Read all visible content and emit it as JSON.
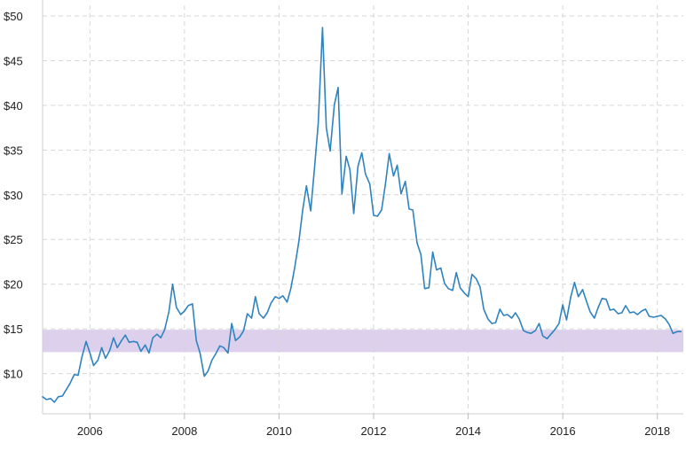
{
  "chart_data": {
    "type": "line",
    "title": "",
    "xlabel": "",
    "ylabel": "",
    "grid": true,
    "xlim": [
      2005.0,
      2018.55
    ],
    "ylim": [
      5.5,
      50
    ],
    "y_ticks": [
      10,
      15,
      20,
      25,
      30,
      35,
      40,
      45,
      50
    ],
    "y_tick_labels": [
      "$10",
      "$15",
      "$20",
      "$25",
      "$30",
      "$35",
      "$40",
      "$45",
      "$50"
    ],
    "x_ticks": [
      2006,
      2008,
      2010,
      2012,
      2014,
      2016,
      2018
    ],
    "x_tick_labels": [
      "2006",
      "2008",
      "2010",
      "2012",
      "2014",
      "2016",
      "2018"
    ],
    "band": {
      "y_low": 12.4,
      "y_high": 14.9,
      "color": "#dcd0ec"
    },
    "colors": {
      "line": "#2f83bf",
      "grid": "#d6d6d6",
      "axis": "#d0d0d0"
    },
    "series": [
      {
        "color": "#2f83bf",
        "x": [
          2005.0,
          2005.08,
          2005.17,
          2005.25,
          2005.33,
          2005.42,
          2005.5,
          2005.58,
          2005.67,
          2005.75,
          2005.83,
          2005.92,
          2006.0,
          2006.08,
          2006.17,
          2006.25,
          2006.33,
          2006.42,
          2006.5,
          2006.58,
          2006.67,
          2006.75,
          2006.83,
          2006.92,
          2007.0,
          2007.08,
          2007.17,
          2007.25,
          2007.33,
          2007.42,
          2007.5,
          2007.58,
          2007.67,
          2007.75,
          2007.83,
          2007.92,
          2008.0,
          2008.08,
          2008.17,
          2008.25,
          2008.33,
          2008.42,
          2008.5,
          2008.58,
          2008.67,
          2008.75,
          2008.83,
          2008.92,
          2009.0,
          2009.08,
          2009.17,
          2009.25,
          2009.33,
          2009.42,
          2009.5,
          2009.58,
          2009.67,
          2009.75,
          2009.83,
          2009.92,
          2010.0,
          2010.08,
          2010.17,
          2010.25,
          2010.33,
          2010.42,
          2010.5,
          2010.58,
          2010.67,
          2010.75,
          2010.83,
          2010.92,
          2011.0,
          2011.08,
          2011.17,
          2011.25,
          2011.33,
          2011.42,
          2011.5,
          2011.58,
          2011.67,
          2011.75,
          2011.83,
          2011.92,
          2012.0,
          2012.08,
          2012.17,
          2012.25,
          2012.33,
          2012.42,
          2012.5,
          2012.58,
          2012.67,
          2012.75,
          2012.83,
          2012.92,
          2013.0,
          2013.08,
          2013.17,
          2013.25,
          2013.33,
          2013.42,
          2013.5,
          2013.58,
          2013.67,
          2013.75,
          2013.83,
          2013.92,
          2014.0,
          2014.08,
          2014.17,
          2014.25,
          2014.33,
          2014.42,
          2014.5,
          2014.58,
          2014.67,
          2014.75,
          2014.83,
          2014.92,
          2015.0,
          2015.08,
          2015.17,
          2015.25,
          2015.33,
          2015.42,
          2015.5,
          2015.58,
          2015.67,
          2015.75,
          2015.83,
          2015.92,
          2016.0,
          2016.08,
          2016.17,
          2016.25,
          2016.33,
          2016.42,
          2016.5,
          2016.58,
          2016.67,
          2016.75,
          2016.83,
          2016.92,
          2017.0,
          2017.08,
          2017.17,
          2017.25,
          2017.33,
          2017.42,
          2017.5,
          2017.58,
          2017.67,
          2017.75,
          2017.83,
          2017.92,
          2018.0,
          2018.08,
          2018.17,
          2018.25,
          2018.33,
          2018.42,
          2018.5
        ],
        "y": [
          7.4,
          7.1,
          7.2,
          6.8,
          7.4,
          7.5,
          8.2,
          8.9,
          9.9,
          9.8,
          11.8,
          13.6,
          12.3,
          10.9,
          11.5,
          12.9,
          11.7,
          12.6,
          14.0,
          12.9,
          13.7,
          14.3,
          13.5,
          13.6,
          13.5,
          12.5,
          13.2,
          12.3,
          14.0,
          14.4,
          14.0,
          14.9,
          16.9,
          20.0,
          17.4,
          16.6,
          17.0,
          17.6,
          17.8,
          13.7,
          12.3,
          9.7,
          10.3,
          11.5,
          12.3,
          13.1,
          12.9,
          12.3,
          15.6,
          13.7,
          14.1,
          14.8,
          16.7,
          16.2,
          18.6,
          16.7,
          16.2,
          16.8,
          17.9,
          18.6,
          18.4,
          18.7,
          18.0,
          19.5,
          21.8,
          24.8,
          28.3,
          31.0,
          28.2,
          33.0,
          38.0,
          48.7,
          37.5,
          34.9,
          40.1,
          42.0,
          30.1,
          34.3,
          32.8,
          27.9,
          33.2,
          34.7,
          32.3,
          31.2,
          27.7,
          27.6,
          28.3,
          31.2,
          34.6,
          32.1,
          33.3,
          30.1,
          31.5,
          28.4,
          28.3,
          24.6,
          23.3,
          19.5,
          19.6,
          23.6,
          21.6,
          21.8,
          20.1,
          19.5,
          19.3,
          21.3,
          19.6,
          19.0,
          18.6,
          21.1,
          20.6,
          19.7,
          17.2,
          16.1,
          15.6,
          15.7,
          17.2,
          16.5,
          16.6,
          16.2,
          16.8,
          16.1,
          14.8,
          14.6,
          14.5,
          14.8,
          15.6,
          14.2,
          13.9,
          14.4,
          14.9,
          15.6,
          17.7,
          16.0,
          18.6,
          20.2,
          18.6,
          19.4,
          18.1,
          16.9,
          16.2,
          17.4,
          18.4,
          18.3,
          17.1,
          17.2,
          16.7,
          16.8,
          17.6,
          16.8,
          16.9,
          16.6,
          17.0,
          17.2,
          16.4,
          16.3,
          16.4,
          16.5,
          16.1,
          15.5,
          14.5,
          14.7,
          14.7
        ]
      }
    ]
  }
}
